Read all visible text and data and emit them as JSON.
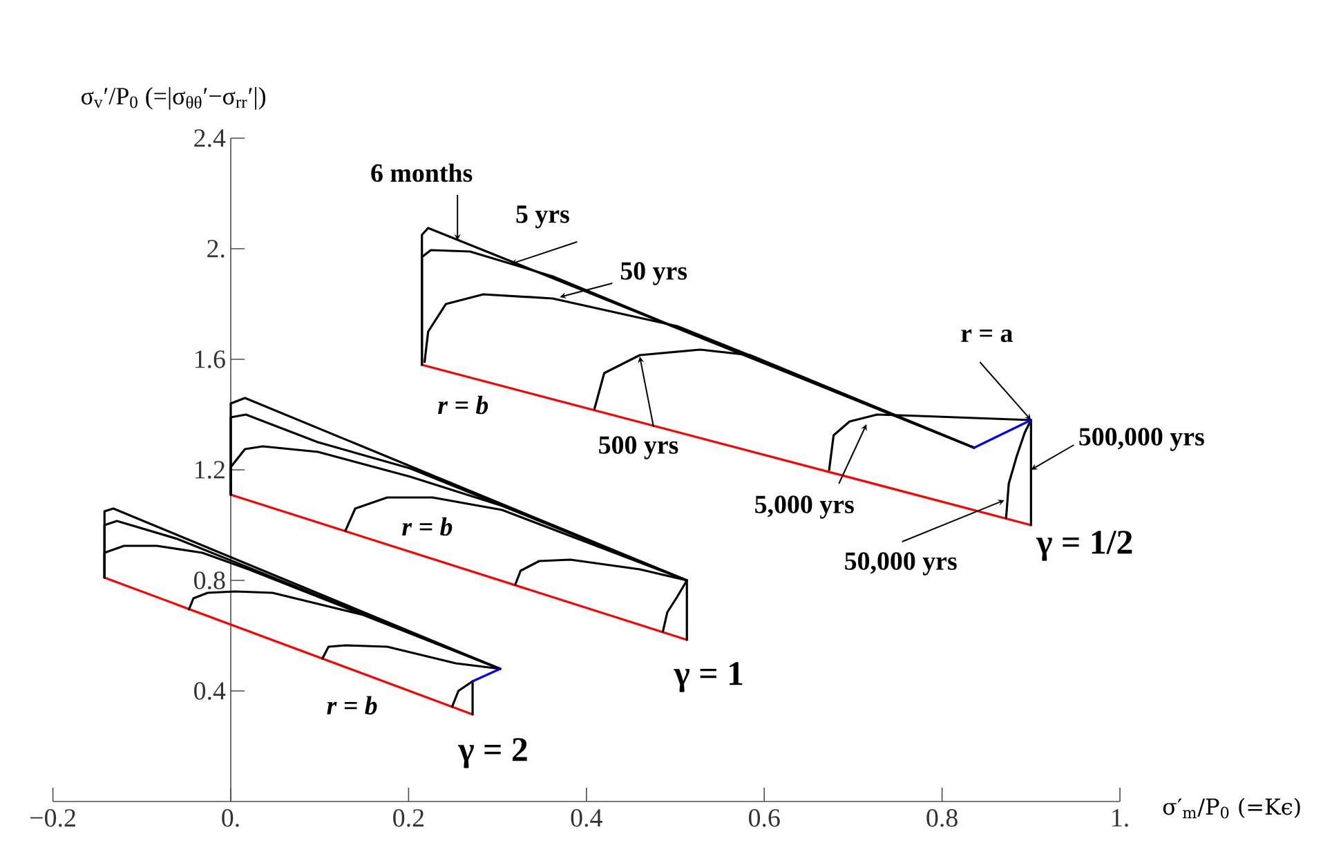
{
  "chart_data": {
    "type": "line",
    "xlabel": "σ′$_{m}$/P$_{0}$ (=Kϵ)",
    "ylabel": "σ$_{v}$′/P$_{0}$ (=|σ$_{θθ}$′−σ$_{rr}$′|)",
    "xlim": [
      -0.2,
      1.0
    ],
    "ylim": [
      0,
      2.4
    ],
    "xticks": [
      {
        "value": -0.2,
        "label": "−0.2"
      },
      {
        "value": 0,
        "label": "0."
      },
      0.2,
      0.4,
      0.6,
      0.8,
      {
        "value": 1,
        "label": "1."
      }
    ],
    "yticks": [
      0.4,
      0.8,
      1.2,
      1.6,
      {
        "value": 2,
        "label": "2."
      },
      2.4
    ],
    "series": [
      {
        "color": "#ff0000",
        "x": [
          0.215,
          0.9
        ],
        "values": [
          1.58,
          1.0
        ]
      },
      {
        "color": "#000000",
        "x": [
          0.215,
          0.215,
          0.222,
          0.836
        ],
        "values": [
          1.58,
          2.05,
          2.075,
          1.28
        ]
      },
      {
        "color": "#000000",
        "x": [
          0.215,
          0.215,
          0.225,
          0.269,
          0.362,
          0.486,
          0.836
        ],
        "values": [
          1.58,
          1.97,
          1.995,
          1.99,
          1.9,
          1.735,
          1.28
        ]
      },
      {
        "color": "#000000",
        "x": [
          0.218,
          0.222,
          0.242,
          0.284,
          0.362,
          0.502,
          0.587,
          0.836
        ],
        "values": [
          1.59,
          1.7,
          1.8,
          1.835,
          1.82,
          1.72,
          1.61,
          1.28
        ]
      },
      {
        "color": "#000000",
        "x": [
          0.409,
          0.42,
          0.46,
          0.528,
          0.584,
          0.836
        ],
        "values": [
          1.42,
          1.55,
          1.615,
          1.635,
          1.615,
          1.28
        ]
      },
      {
        "color": "#000000",
        "x": [
          0.673,
          0.678,
          0.696,
          0.727,
          0.774,
          0.9
        ],
        "values": [
          1.2,
          1.325,
          1.375,
          1.4,
          1.395,
          1.38
        ]
      },
      {
        "color": "#000000",
        "x": [
          0.872,
          0.875,
          0.884,
          0.893,
          0.9
        ],
        "values": [
          1.025,
          1.15,
          1.25,
          1.335,
          1.38
        ]
      },
      {
        "color": "#000000",
        "x": [
          0.9,
          0.9
        ],
        "values": [
          1.0,
          1.38
        ]
      },
      {
        "color": "#0000ff",
        "x": [
          0.836,
          0.9
        ],
        "values": [
          1.28,
          1.38
        ]
      },
      {
        "color": "#ff0000",
        "x": [
          0,
          0.513
        ],
        "values": [
          1.11,
          0.585
        ]
      },
      {
        "color": "#000000",
        "x": [
          0,
          0,
          0.016,
          0.513
        ],
        "values": [
          1.11,
          1.44,
          1.46,
          0.8
        ]
      },
      {
        "color": "#000000",
        "x": [
          0,
          0,
          0.017,
          0.098,
          0.202,
          0.513
        ],
        "values": [
          1.11,
          1.39,
          1.4,
          1.3,
          1.205,
          0.8
        ]
      },
      {
        "color": "#000000",
        "x": [
          0,
          0,
          0.016,
          0.036,
          0.098,
          0.202,
          0.305,
          0.513
        ],
        "values": [
          1.11,
          1.21,
          1.275,
          1.285,
          1.265,
          1.175,
          1.07,
          0.8
        ]
      },
      {
        "color": "#000000",
        "x": [
          0.129,
          0.14,
          0.176,
          0.227,
          0.305,
          0.513
        ],
        "values": [
          0.98,
          1.06,
          1.1,
          1.1,
          1.055,
          0.8
        ]
      },
      {
        "color": "#000000",
        "x": [
          0.32,
          0.326,
          0.347,
          0.382,
          0.46,
          0.513
        ],
        "values": [
          0.785,
          0.835,
          0.87,
          0.875,
          0.84,
          0.8
        ]
      },
      {
        "color": "#000000",
        "x": [
          0.486,
          0.491,
          0.502,
          0.513
        ],
        "values": [
          0.615,
          0.685,
          0.74,
          0.8
        ]
      },
      {
        "color": "#000000",
        "x": [
          0.513,
          0.513
        ],
        "values": [
          0.585,
          0.8
        ]
      },
      {
        "color": "#ff0000",
        "x": [
          -0.142,
          0.272
        ],
        "values": [
          0.81,
          0.315
        ]
      },
      {
        "color": "#000000",
        "x": [
          -0.142,
          -0.142,
          -0.132,
          0.303
        ],
        "values": [
          0.81,
          1.05,
          1.06,
          0.48
        ]
      },
      {
        "color": "#000000",
        "x": [
          -0.142,
          -0.142,
          -0.128,
          -0.06,
          0.303
        ],
        "values": [
          0.81,
          1.0,
          1.015,
          0.95,
          0.48
        ]
      },
      {
        "color": "#000000",
        "x": [
          -0.142,
          -0.142,
          -0.12,
          -0.083,
          -0.032,
          0.02,
          0.303
        ],
        "values": [
          0.81,
          0.9,
          0.925,
          0.925,
          0.9,
          0.84,
          0.48
        ]
      },
      {
        "color": "#000000",
        "x": [
          -0.047,
          -0.042,
          -0.026,
          0.005,
          0.047,
          0.149,
          0.303
        ],
        "values": [
          0.695,
          0.735,
          0.755,
          0.76,
          0.755,
          0.675,
          0.48
        ]
      },
      {
        "color": "#000000",
        "x": [
          0.103,
          0.11,
          0.129,
          0.176,
          0.253,
          0.303
        ],
        "values": [
          0.517,
          0.56,
          0.565,
          0.56,
          0.5,
          0.48
        ]
      },
      {
        "color": "#000000",
        "x": [
          0.249,
          0.256,
          0.272
        ],
        "values": [
          0.343,
          0.4,
          0.435
        ]
      },
      {
        "color": "#000000",
        "x": [
          0.272,
          0.272
        ],
        "values": [
          0.315,
          0.435
        ]
      },
      {
        "color": "#0000ff",
        "x": [
          0.272,
          0.303
        ],
        "values": [
          0.435,
          0.48
        ]
      }
    ],
    "annotations": [
      {
        "text": "6 months",
        "x": 0.255,
        "y": 2.03
      },
      {
        "text": "5 yrs",
        "x": 0.315,
        "y": 1.945
      },
      {
        "text": "50 yrs",
        "x": 0.37,
        "y": 1.825
      },
      {
        "text": "500 yrs",
        "x": 0.46,
        "y": 1.61
      },
      {
        "text": "5,000 yrs",
        "x": 0.715,
        "y": 1.365
      },
      {
        "text": "50,000 yrs",
        "x": 0.87,
        "y": 1.09
      },
      {
        "text": "500,000 yrs",
        "x": 0.9,
        "y": 1.2
      },
      {
        "text": "r = a",
        "x": 0.9,
        "y": 1.38
      },
      {
        "text": "r = b",
        "x": 0.252,
        "y": 1.55
      },
      {
        "text": "r = b",
        "x": 0.221,
        "y": 0.885
      },
      {
        "text": "r = b",
        "x": 0.152,
        "y": 0.458
      },
      {
        "text": "γ = 1/2",
        "x": 0.9,
        "y": 1.0
      },
      {
        "text": "γ = 1",
        "x": 0.513,
        "y": 0.585
      },
      {
        "text": "γ = 2",
        "x": 0.272,
        "y": 0.315
      }
    ]
  }
}
